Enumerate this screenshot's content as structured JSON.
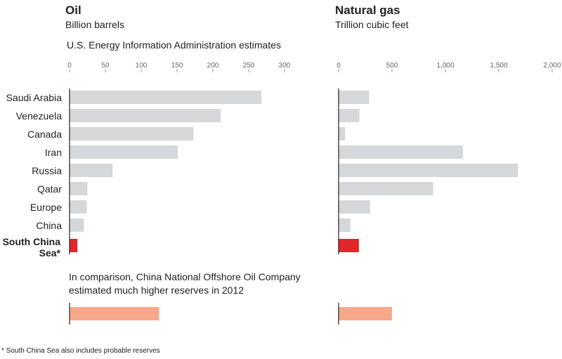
{
  "oil": {
    "title": "Oil",
    "unit": "Billion barrels",
    "source_note": "U.S. Energy Information Administration estimates"
  },
  "gas": {
    "title": "Natural gas",
    "unit": "Trillion cubic feet"
  },
  "comparison_note": "In comparison, China National Offshore Oil Company estimated much higher reserves in 2012",
  "footnote": "* South China Sea also includes probable reserves",
  "colors": {
    "bar": "#d4d8da",
    "highlight": "#e3262b",
    "comparison": "#f7a88a",
    "axis": "#222222"
  },
  "chart_data": [
    {
      "type": "bar",
      "orientation": "horizontal",
      "title": "Oil",
      "subtitle": "Billion barrels",
      "categories": [
        "Saudi Arabia",
        "Venezuela",
        "Canada",
        "Iran",
        "Russia",
        "Qatar",
        "Europe",
        "China",
        "South China Sea*"
      ],
      "values": [
        268,
        211,
        173,
        151,
        60,
        25,
        24,
        20,
        11
      ],
      "highlight_category": "South China Sea*",
      "comparison_value": 125,
      "xlim": [
        0,
        300
      ],
      "ticks": [
        0,
        50,
        100,
        150,
        200,
        250,
        300
      ],
      "tick_labels": [
        "0",
        "50",
        "100",
        "150",
        "200",
        "250",
        "300"
      ]
    },
    {
      "type": "bar",
      "orientation": "horizontal",
      "title": "Natural gas",
      "subtitle": "Trillion cubic feet",
      "categories": [
        "Saudi Arabia",
        "Venezuela",
        "Canada",
        "Iran",
        "Russia",
        "Qatar",
        "Europe",
        "China",
        "South China Sea*"
      ],
      "values": [
        285,
        195,
        60,
        1165,
        1680,
        885,
        295,
        110,
        190
      ],
      "highlight_category": "South China Sea*",
      "comparison_value": 500,
      "xlim": [
        0,
        2000
      ],
      "ticks": [
        0,
        500,
        1000,
        1500,
        2000
      ],
      "tick_labels": [
        "0",
        "500",
        "1,000",
        "1,500",
        "2,000"
      ]
    }
  ]
}
